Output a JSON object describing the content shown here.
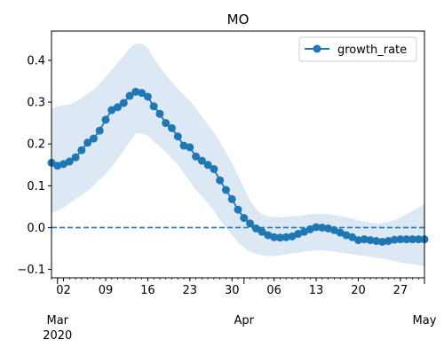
{
  "chart_data": {
    "type": "line",
    "title": "MO",
    "xlabel": "",
    "ylabel": "",
    "x_start": "2020-02-29",
    "x_end": "2020-05-01",
    "xlim": [
      "2020-02-29",
      "2020-05-01"
    ],
    "ylim": [
      -0.12,
      0.47
    ],
    "grid": false,
    "legend": "top-right",
    "y_ticks": [
      "−0.1",
      "0.0",
      "0.1",
      "0.2",
      "0.3",
      "0.4"
    ],
    "y_tick_values": [
      -0.1,
      0.0,
      0.1,
      0.2,
      0.3,
      0.4
    ],
    "x_minor_ticks": [
      {
        "date": "2020-03-02",
        "label": "02"
      },
      {
        "date": "2020-03-09",
        "label": "09"
      },
      {
        "date": "2020-03-16",
        "label": "16"
      },
      {
        "date": "2020-03-23",
        "label": "23"
      },
      {
        "date": "2020-03-30",
        "label": "30"
      },
      {
        "date": "2020-04-06",
        "label": "06"
      },
      {
        "date": "2020-04-13",
        "label": "13"
      },
      {
        "date": "2020-04-20",
        "label": "20"
      },
      {
        "date": "2020-04-27",
        "label": "27"
      }
    ],
    "x_major_ticks": [
      {
        "date": "2020-03-01",
        "label": "Mar",
        "sublabel": "2020"
      },
      {
        "date": "2020-04-01",
        "label": "Apr",
        "sublabel": ""
      },
      {
        "date": "2020-05-01",
        "label": "May",
        "sublabel": ""
      }
    ],
    "reference_line": {
      "y": 0.0,
      "style": "dashed"
    },
    "colors": {
      "line": "#1f77b4",
      "band": "#dce9f5"
    },
    "series": [
      {
        "name": "growth_rate",
        "start_date": "2020-02-29",
        "values": [
          0.155,
          0.148,
          0.152,
          0.158,
          0.168,
          0.185,
          0.203,
          0.213,
          0.232,
          0.258,
          0.281,
          0.288,
          0.298,
          0.315,
          0.325,
          0.322,
          0.313,
          0.29,
          0.272,
          0.25,
          0.238,
          0.218,
          0.196,
          0.192,
          0.17,
          0.16,
          0.15,
          0.14,
          0.113,
          0.09,
          0.068,
          0.043,
          0.023,
          0.01,
          -0.002,
          -0.01,
          -0.018,
          -0.023,
          -0.024,
          -0.023,
          -0.021,
          -0.015,
          -0.01,
          -0.004,
          0.001,
          0.0,
          -0.002,
          -0.006,
          -0.012,
          -0.018,
          -0.023,
          -0.03,
          -0.028,
          -0.03,
          -0.032,
          -0.034,
          -0.032,
          -0.029,
          -0.028,
          -0.028,
          -0.028,
          -0.028,
          -0.028
        ],
        "lower": [
          0.035,
          0.04,
          0.048,
          0.058,
          0.068,
          0.078,
          0.088,
          0.1,
          0.115,
          0.128,
          0.145,
          0.165,
          0.185,
          0.205,
          0.225,
          0.225,
          0.22,
          0.205,
          0.195,
          0.18,
          0.165,
          0.15,
          0.13,
          0.11,
          0.09,
          0.075,
          0.058,
          0.04,
          0.018,
          0.0,
          -0.018,
          -0.035,
          -0.048,
          -0.058,
          -0.063,
          -0.066,
          -0.068,
          -0.068,
          -0.066,
          -0.064,
          -0.062,
          -0.06,
          -0.058,
          -0.056,
          -0.055,
          -0.055,
          -0.056,
          -0.058,
          -0.06,
          -0.062,
          -0.064,
          -0.066,
          -0.068,
          -0.07,
          -0.072,
          -0.074,
          -0.077,
          -0.08,
          -0.083,
          -0.086,
          -0.088,
          -0.09,
          -0.092
        ],
        "upper": [
          0.285,
          0.29,
          0.292,
          0.295,
          0.3,
          0.31,
          0.32,
          0.33,
          0.345,
          0.36,
          0.378,
          0.395,
          0.41,
          0.43,
          0.44,
          0.44,
          0.43,
          0.405,
          0.385,
          0.365,
          0.348,
          0.332,
          0.318,
          0.303,
          0.285,
          0.265,
          0.245,
          0.228,
          0.205,
          0.18,
          0.155,
          0.125,
          0.095,
          0.065,
          0.045,
          0.032,
          0.027,
          0.025,
          0.025,
          0.026,
          0.027,
          0.028,
          0.03,
          0.032,
          0.033,
          0.033,
          0.032,
          0.03,
          0.028,
          0.025,
          0.022,
          0.018,
          0.014,
          0.012,
          0.01,
          0.011,
          0.014,
          0.018,
          0.024,
          0.032,
          0.04,
          0.048,
          0.057
        ]
      }
    ]
  }
}
